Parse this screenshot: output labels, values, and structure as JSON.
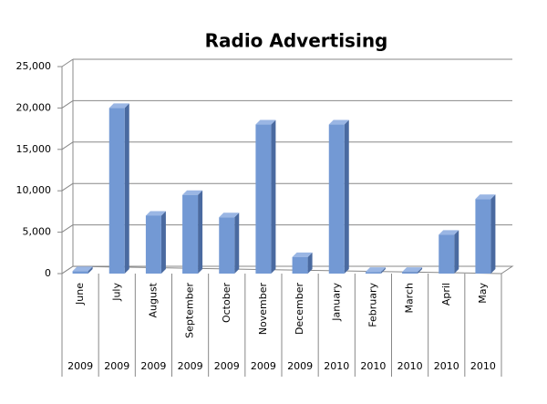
{
  "chart_data": {
    "type": "bar",
    "title": "Radio Advertising",
    "categories": [
      "June",
      "July",
      "August",
      "September",
      "October",
      "November",
      "December",
      "January",
      "February",
      "March",
      "April",
      "May"
    ],
    "years": [
      "2009",
      "2009",
      "2009",
      "2009",
      "2009",
      "2009",
      "2009",
      "2010",
      "2010",
      "2010",
      "2010",
      "2010"
    ],
    "values": [
      300,
      20000,
      7000,
      9500,
      6800,
      18000,
      2000,
      18000,
      200,
      200,
      4700,
      9000
    ],
    "color": "#7399d4",
    "ylim": [
      0,
      25000
    ],
    "yticks": [
      0,
      {
        "value": 5000,
        "label": "5,000"
      },
      {
        "value": 10000,
        "label": "10,000"
      },
      {
        "value": 15000,
        "label": "15,000"
      },
      {
        "value": 20000,
        "label": "20,000"
      },
      {
        "value": 25000,
        "label": "25,000"
      }
    ],
    "grid": true
  }
}
